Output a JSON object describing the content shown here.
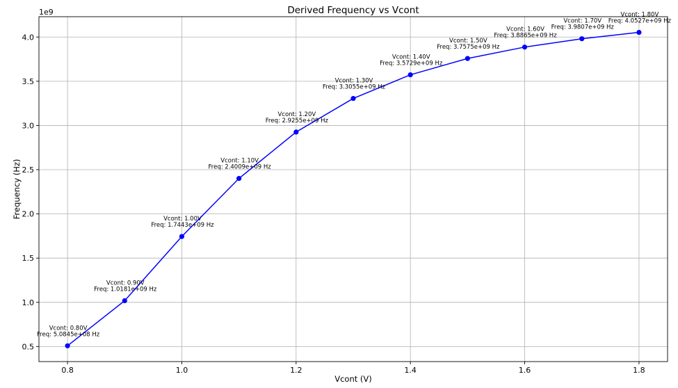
{
  "chart_data": {
    "type": "line",
    "title": "Derived Frequency vs Vcont",
    "xlabel": "Vcont (V)",
    "ylabel": "Frequency (Hz)",
    "y_offset_label": "1e9",
    "xlim": [
      0.75,
      1.85
    ],
    "ylim": [
      0.33,
      4.23
    ],
    "x_ticks": [
      0.8,
      1.0,
      1.2,
      1.4,
      1.6,
      1.8
    ],
    "x_tick_labels": [
      "0.8",
      "1.0",
      "1.2",
      "1.4",
      "1.6",
      "1.8"
    ],
    "y_ticks": [
      0.5,
      1.0,
      1.5,
      2.0,
      2.5,
      3.0,
      3.5,
      4.0
    ],
    "y_tick_labels": [
      "0.5",
      "1.0",
      "1.5",
      "2.0",
      "2.5",
      "3.0",
      "3.5",
      "4.0"
    ],
    "grid": true,
    "line_color": "#0000ff",
    "marker_color": "#0000ff",
    "series": [
      {
        "x": [
          0.8,
          0.9,
          1.0,
          1.1,
          1.2,
          1.3,
          1.4,
          1.5,
          1.6,
          1.7,
          1.8
        ],
        "y": [
          0.50845,
          1.0181,
          1.7443,
          2.4009,
          2.9255,
          3.3055,
          3.5729,
          3.7575,
          3.8865,
          3.9807,
          4.0527
        ]
      }
    ],
    "annotations": [
      {
        "line1": "Vcont: 0.80V",
        "line2": "Freq: 5.0845e+08 Hz"
      },
      {
        "line1": "Vcont: 0.90V",
        "line2": "Freq: 1.0181e+09 Hz"
      },
      {
        "line1": "Vcont: 1.00V",
        "line2": "Freq: 1.7443e+09 Hz"
      },
      {
        "line1": "Vcont: 1.10V",
        "line2": "Freq: 2.4009e+09 Hz"
      },
      {
        "line1": "Vcont: 1.20V",
        "line2": "Freq: 2.9255e+09 Hz"
      },
      {
        "line1": "Vcont: 1.30V",
        "line2": "Freq: 3.3055e+09 Hz"
      },
      {
        "line1": "Vcont: 1.40V",
        "line2": "Freq: 3.5729e+09 Hz"
      },
      {
        "line1": "Vcont: 1.50V",
        "line2": "Freq: 3.7575e+09 Hz"
      },
      {
        "line1": "Vcont: 1.60V",
        "line2": "Freq: 3.8865e+09 Hz"
      },
      {
        "line1": "Vcont: 1.70V",
        "line2": "Freq: 3.9807e+09 Hz"
      },
      {
        "line1": "Vcont: 1.80V",
        "line2": "Freq: 4.0527e+09 Hz"
      }
    ]
  }
}
